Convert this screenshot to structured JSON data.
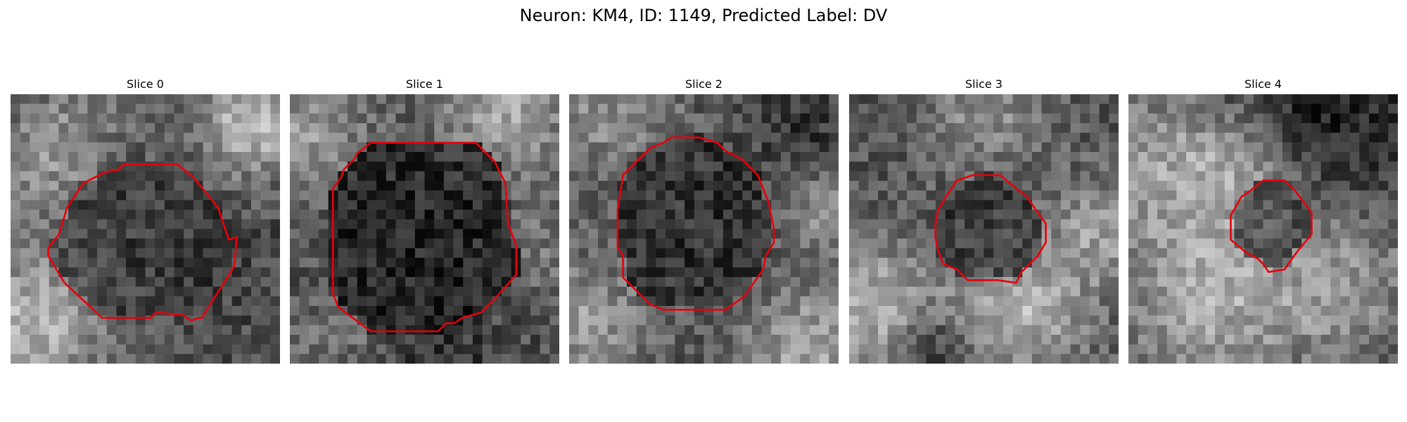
{
  "figure": {
    "title": "Neuron: KM4, ID: 1149, Predicted Label: DV"
  },
  "slices": [
    {
      "title": "Slice 0",
      "seed": 11,
      "blobs": [
        [
          0.12,
          0.25,
          0.22,
          0.55
        ],
        [
          0.9,
          0.1,
          0.2,
          0.75
        ],
        [
          0.08,
          0.85,
          0.28,
          0.7
        ],
        [
          0.85,
          0.7,
          0.22,
          0.25
        ],
        [
          0.3,
          0.05,
          0.18,
          0.45
        ]
      ],
      "contour": [
        [
          0.42,
          0.26
        ],
        [
          0.62,
          0.26
        ],
        [
          0.68,
          0.31
        ],
        [
          0.77,
          0.42
        ],
        [
          0.81,
          0.54
        ],
        [
          0.84,
          0.53
        ],
        [
          0.83,
          0.64
        ],
        [
          0.76,
          0.75
        ],
        [
          0.71,
          0.83
        ],
        [
          0.7,
          0.83
        ],
        [
          0.67,
          0.84
        ],
        [
          0.64,
          0.82
        ],
        [
          0.54,
          0.81
        ],
        [
          0.52,
          0.83
        ],
        [
          0.34,
          0.83
        ],
        [
          0.2,
          0.7
        ],
        [
          0.14,
          0.6
        ],
        [
          0.14,
          0.57
        ],
        [
          0.18,
          0.52
        ],
        [
          0.21,
          0.42
        ],
        [
          0.27,
          0.33
        ],
        [
          0.35,
          0.29
        ],
        [
          0.4,
          0.28
        ]
      ],
      "inner": 0.18
    },
    {
      "title": "Slice 1",
      "seed": 23,
      "blobs": [
        [
          0.08,
          0.15,
          0.22,
          0.6
        ],
        [
          0.8,
          0.05,
          0.25,
          0.65
        ],
        [
          0.95,
          0.55,
          0.2,
          0.45
        ],
        [
          0.2,
          0.9,
          0.2,
          0.45
        ],
        [
          0.55,
          0.95,
          0.25,
          0.2
        ]
      ],
      "contour": [
        [
          0.3,
          0.18
        ],
        [
          0.69,
          0.18
        ],
        [
          0.76,
          0.25
        ],
        [
          0.8,
          0.33
        ],
        [
          0.81,
          0.48
        ],
        [
          0.84,
          0.56
        ],
        [
          0.84,
          0.67
        ],
        [
          0.76,
          0.76
        ],
        [
          0.71,
          0.81
        ],
        [
          0.64,
          0.83
        ],
        [
          0.61,
          0.85
        ],
        [
          0.6,
          0.85
        ],
        [
          0.58,
          0.85
        ],
        [
          0.55,
          0.88
        ],
        [
          0.3,
          0.88
        ],
        [
          0.26,
          0.85
        ],
        [
          0.18,
          0.79
        ],
        [
          0.16,
          0.74
        ],
        [
          0.16,
          0.35
        ],
        [
          0.19,
          0.31
        ],
        [
          0.2,
          0.28
        ],
        [
          0.24,
          0.24
        ],
        [
          0.25,
          0.22
        ]
      ],
      "inner": 0.06
    },
    {
      "title": "Slice 2",
      "seed": 37,
      "blobs": [
        [
          0.15,
          0.05,
          0.28,
          0.55
        ],
        [
          0.9,
          0.95,
          0.25,
          0.65
        ],
        [
          0.05,
          0.85,
          0.25,
          0.6
        ],
        [
          0.95,
          0.45,
          0.15,
          0.55
        ],
        [
          0.85,
          0.1,
          0.2,
          0.2
        ]
      ],
      "contour": [
        [
          0.3,
          0.2
        ],
        [
          0.35,
          0.18
        ],
        [
          0.38,
          0.16
        ],
        [
          0.48,
          0.16
        ],
        [
          0.55,
          0.18
        ],
        [
          0.58,
          0.21
        ],
        [
          0.64,
          0.24
        ],
        [
          0.7,
          0.3
        ],
        [
          0.74,
          0.4
        ],
        [
          0.76,
          0.5
        ],
        [
          0.76,
          0.55
        ],
        [
          0.73,
          0.6
        ],
        [
          0.72,
          0.65
        ],
        [
          0.7,
          0.68
        ],
        [
          0.65,
          0.75
        ],
        [
          0.58,
          0.8
        ],
        [
          0.35,
          0.8
        ],
        [
          0.3,
          0.78
        ],
        [
          0.25,
          0.73
        ],
        [
          0.2,
          0.68
        ],
        [
          0.2,
          0.6
        ],
        [
          0.18,
          0.57
        ],
        [
          0.18,
          0.43
        ],
        [
          0.2,
          0.3
        ],
        [
          0.24,
          0.26
        ]
      ],
      "inner": 0.12
    },
    {
      "title": "Slice 3",
      "seed": 53,
      "blobs": [
        [
          0.5,
          0.05,
          0.25,
          0.55
        ],
        [
          0.1,
          0.8,
          0.25,
          0.7
        ],
        [
          0.65,
          0.8,
          0.25,
          0.7
        ],
        [
          0.3,
          0.95,
          0.15,
          0.1
        ],
        [
          0.95,
          0.5,
          0.2,
          0.6
        ]
      ],
      "contour": [
        [
          0.4,
          0.32
        ],
        [
          0.46,
          0.3
        ],
        [
          0.56,
          0.3
        ],
        [
          0.62,
          0.35
        ],
        [
          0.66,
          0.38
        ],
        [
          0.7,
          0.44
        ],
        [
          0.73,
          0.48
        ],
        [
          0.73,
          0.55
        ],
        [
          0.7,
          0.6
        ],
        [
          0.64,
          0.66
        ],
        [
          0.62,
          0.7
        ],
        [
          0.55,
          0.69
        ],
        [
          0.44,
          0.69
        ],
        [
          0.4,
          0.65
        ],
        [
          0.35,
          0.63
        ],
        [
          0.33,
          0.58
        ],
        [
          0.32,
          0.53
        ],
        [
          0.32,
          0.48
        ],
        [
          0.33,
          0.43
        ],
        [
          0.36,
          0.38
        ]
      ],
      "inner": 0.17
    },
    {
      "title": "Slice 4",
      "seed": 71,
      "blobs": [
        [
          0.15,
          0.25,
          0.3,
          0.6
        ],
        [
          0.45,
          0.25,
          0.2,
          0.55
        ],
        [
          0.3,
          0.75,
          0.35,
          0.65
        ],
        [
          0.8,
          0.7,
          0.3,
          0.55
        ],
        [
          0.7,
          0.05,
          0.35,
          0.08
        ]
      ],
      "contour": [
        [
          0.5,
          0.32
        ],
        [
          0.58,
          0.32
        ],
        [
          0.62,
          0.36
        ],
        [
          0.65,
          0.4
        ],
        [
          0.68,
          0.44
        ],
        [
          0.68,
          0.52
        ],
        [
          0.63,
          0.58
        ],
        [
          0.6,
          0.62
        ],
        [
          0.58,
          0.65
        ],
        [
          0.52,
          0.66
        ],
        [
          0.5,
          0.63
        ],
        [
          0.48,
          0.61
        ],
        [
          0.44,
          0.59
        ],
        [
          0.38,
          0.54
        ],
        [
          0.38,
          0.45
        ],
        [
          0.42,
          0.38
        ],
        [
          0.45,
          0.36
        ]
      ],
      "inner": 0.22
    }
  ],
  "colors": {
    "contour": "#e8000b",
    "background": "#ffffff"
  },
  "grid_size": 28
}
